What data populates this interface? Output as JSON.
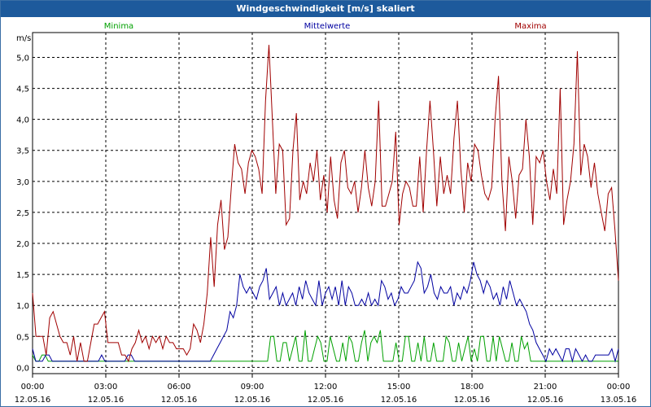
{
  "title": "Windgeschwindigkeit [m/s] skaliert",
  "chart_data": {
    "type": "line",
    "title": "Windgeschwindigkeit [m/s] skaliert",
    "ylabel": "m/s",
    "xlabel": "",
    "ylim": [
      -0.1,
      5.4
    ],
    "xlim": [
      0,
      72
    ],
    "yticks": [
      0.0,
      0.5,
      1.0,
      1.5,
      2.0,
      2.5,
      3.0,
      3.5,
      4.0,
      4.5,
      5.0
    ],
    "ytick_labels": [
      "0,0",
      "0,5",
      "1,0",
      "1,5",
      "2,0",
      "2,5",
      "3,0",
      "3,5",
      "4,0",
      "4,5",
      "5,0"
    ],
    "xtick_labels": [
      {
        "time": "00:00",
        "date": "12.05.16"
      },
      {
        "time": "03:00",
        "date": "12.05.16"
      },
      {
        "time": "06:00",
        "date": "12.05.16"
      },
      {
        "time": "09:00",
        "date": "12.05.16"
      },
      {
        "time": "12:00",
        "date": "12.05.16"
      },
      {
        "time": "15:00",
        "date": "12.05.16"
      },
      {
        "time": "18:00",
        "date": "12.05.16"
      },
      {
        "time": "21:00",
        "date": "12.05.16"
      },
      {
        "time": "00:00",
        "date": "13.05.16"
      }
    ],
    "grid": true,
    "legend_position": "top",
    "series": [
      {
        "name": "Minima",
        "color": "#00a000",
        "values": [
          0.2,
          0.1,
          0.1,
          0.2,
          0.2,
          0.1,
          0.1,
          0.1,
          0.1,
          0.1,
          0.1,
          0.1,
          0.1,
          0.1,
          0.1,
          0.1,
          0.1,
          0.1,
          0.1,
          0.1,
          0.1,
          0.1,
          0.1,
          0.1,
          0.1,
          0.1,
          0.1,
          0.1,
          0.1,
          0.1,
          0.1,
          0.1,
          0.1,
          0.1,
          0.1,
          0.1,
          0.1,
          0.1,
          0.1,
          0.1,
          0.1,
          0.1,
          0.1,
          0.1,
          0.1,
          0.1,
          0.1,
          0.1,
          0.1,
          0.1,
          0.1,
          0.1,
          0.1,
          0.1,
          0.1,
          0.1,
          0.1,
          0.1,
          0.1,
          0.1,
          0.1,
          0.1,
          0.1,
          0.1,
          0.1,
          0.1,
          0.1,
          0.1,
          0.1,
          0.1,
          0.1,
          0.1,
          0.1,
          0.1,
          0.1,
          0.1,
          0.5,
          0.5,
          0.1,
          0.1,
          0.4,
          0.4,
          0.1,
          0.3,
          0.5,
          0.1,
          0.1,
          0.6,
          0.1,
          0.1,
          0.3,
          0.5,
          0.4,
          0.1,
          0.1,
          0.5,
          0.3,
          0.1,
          0.1,
          0.4,
          0.1,
          0.5,
          0.4,
          0.1,
          0.1,
          0.4,
          0.6,
          0.1,
          0.4,
          0.5,
          0.4,
          0.6,
          0.1,
          0.1,
          0.1,
          0.1,
          0.4,
          0.1,
          0.1,
          0.5,
          0.5,
          0.1,
          0.1,
          0.4,
          0.1,
          0.5,
          0.1,
          0.1,
          0.4,
          0.1,
          0.1,
          0.1,
          0.5,
          0.4,
          0.1,
          0.1,
          0.4,
          0.1,
          0.3,
          0.5,
          0.1,
          0.3,
          0.1,
          0.5,
          0.5,
          0.1,
          0.1,
          0.5,
          0.1,
          0.5,
          0.3,
          0.1,
          0.1,
          0.4,
          0.1,
          0.1,
          0.5,
          0.3,
          0.4,
          0.1,
          0.1,
          0.1,
          0.1,
          0.1,
          0.1,
          0.1,
          0.1,
          0.1,
          0.1,
          0.1,
          0.1,
          0.1,
          0.1,
          0.1,
          0.1,
          0.1,
          0.1,
          0.1,
          0.1,
          0.1,
          0.1,
          0.1,
          0.1,
          0.1,
          0.1,
          0.1,
          0.1,
          0.1
        ]
      },
      {
        "name": "Mittelwerte",
        "color": "#0000a0",
        "values": [
          0.3,
          0.1,
          0.1,
          0.1,
          0.2,
          0.2,
          0.1,
          0.1,
          0.1,
          0.1,
          0.1,
          0.1,
          0.1,
          0.1,
          0.1,
          0.1,
          0.1,
          0.1,
          0.1,
          0.1,
          0.1,
          0.2,
          0.1,
          0.1,
          0.1,
          0.1,
          0.1,
          0.1,
          0.1,
          0.2,
          0.2,
          0.1,
          0.1,
          0.1,
          0.1,
          0.1,
          0.1,
          0.1,
          0.1,
          0.1,
          0.1,
          0.1,
          0.1,
          0.1,
          0.1,
          0.1,
          0.1,
          0.1,
          0.1,
          0.1,
          0.1,
          0.1,
          0.1,
          0.1,
          0.1,
          0.2,
          0.3,
          0.4,
          0.5,
          0.6,
          0.9,
          0.8,
          1.0,
          1.5,
          1.3,
          1.2,
          1.3,
          1.2,
          1.1,
          1.3,
          1.4,
          1.6,
          1.1,
          1.2,
          1.3,
          1.0,
          1.2,
          1.0,
          1.1,
          1.2,
          1.0,
          1.3,
          1.1,
          1.4,
          1.2,
          1.1,
          1.0,
          1.4,
          1.0,
          1.2,
          1.3,
          1.1,
          1.3,
          1.0,
          1.4,
          1.0,
          1.3,
          1.2,
          1.0,
          1.0,
          1.1,
          1.0,
          1.2,
          1.0,
          1.1,
          1.0,
          1.4,
          1.3,
          1.1,
          1.2,
          1.0,
          1.1,
          1.3,
          1.2,
          1.2,
          1.3,
          1.4,
          1.7,
          1.6,
          1.2,
          1.3,
          1.5,
          1.2,
          1.1,
          1.3,
          1.2,
          1.2,
          1.3,
          1.0,
          1.2,
          1.1,
          1.3,
          1.2,
          1.4,
          1.7,
          1.5,
          1.4,
          1.2,
          1.4,
          1.3,
          1.1,
          1.2,
          1.0,
          1.3,
          1.1,
          1.4,
          1.2,
          1.0,
          1.1,
          1.0,
          0.9,
          0.7,
          0.6,
          0.4,
          0.3,
          0.2,
          0.1,
          0.3,
          0.2,
          0.3,
          0.2,
          0.1,
          0.3,
          0.3,
          0.1,
          0.3,
          0.2,
          0.1,
          0.2,
          0.1,
          0.1,
          0.2,
          0.2,
          0.2,
          0.2,
          0.2,
          0.3,
          0.1,
          0.3
        ]
      },
      {
        "name": "Maxima",
        "color": "#a00000",
        "values": [
          1.2,
          0.5,
          0.5,
          0.5,
          0.2,
          0.8,
          0.9,
          0.7,
          0.5,
          0.4,
          0.4,
          0.2,
          0.5,
          0.1,
          0.4,
          0.1,
          0.1,
          0.4,
          0.7,
          0.7,
          0.8,
          0.9,
          0.4,
          0.4,
          0.4,
          0.4,
          0.2,
          0.2,
          0.1,
          0.3,
          0.4,
          0.6,
          0.4,
          0.5,
          0.3,
          0.5,
          0.4,
          0.5,
          0.3,
          0.5,
          0.4,
          0.4,
          0.3,
          0.3,
          0.3,
          0.2,
          0.3,
          0.7,
          0.6,
          0.4,
          0.7,
          1.2,
          2.1,
          1.3,
          2.3,
          2.7,
          1.9,
          2.1,
          2.9,
          3.6,
          3.3,
          3.2,
          2.8,
          3.3,
          3.5,
          3.4,
          3.2,
          2.8,
          4.3,
          5.2,
          4.0,
          2.8,
          3.6,
          3.5,
          2.3,
          2.4,
          3.5,
          4.1,
          2.7,
          3.0,
          2.8,
          3.3,
          3.0,
          3.5,
          2.7,
          3.1,
          2.5,
          3.4,
          2.7,
          2.4,
          3.3,
          3.5,
          2.9,
          2.8,
          3.0,
          2.5,
          2.9,
          3.5,
          2.9,
          2.6,
          3.0,
          4.3,
          2.6,
          2.6,
          2.8,
          3.0,
          3.8,
          2.3,
          2.8,
          3.0,
          2.9,
          2.6,
          2.6,
          3.4,
          2.5,
          3.5,
          4.3,
          3.5,
          2.6,
          3.4,
          2.8,
          3.1,
          2.8,
          3.7,
          4.3,
          3.2,
          2.5,
          3.3,
          3.0,
          3.6,
          3.5,
          3.1,
          2.8,
          2.7,
          2.9,
          4.0,
          4.7,
          3.0,
          2.2,
          3.4,
          3.0,
          2.4,
          3.1,
          3.2,
          4.0,
          3.4,
          2.3,
          3.4,
          3.3,
          3.5,
          3.0,
          2.7,
          3.2,
          2.8,
          4.5,
          2.3,
          2.7,
          3.0,
          3.6,
          5.1,
          3.1,
          3.6,
          3.4,
          2.9,
          3.3,
          2.8,
          2.5,
          2.2,
          2.8,
          2.9,
          2.2,
          1.4
        ]
      }
    ]
  }
}
